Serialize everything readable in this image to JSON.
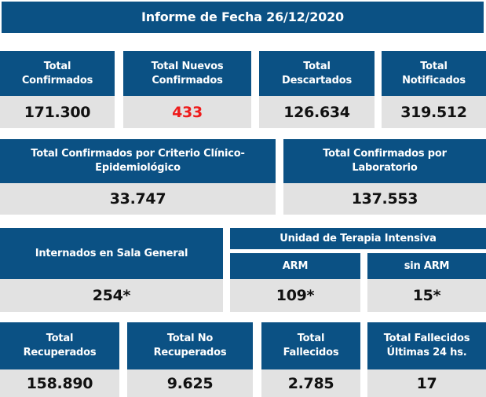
{
  "title": "Informe de Fecha 26/12/2020",
  "row1": [
    {
      "label": "Total Confirmados",
      "value": "171.300"
    },
    {
      "label": "Total Nuevos Confirmados",
      "value": "433"
    },
    {
      "label": "Total Descartados",
      "value": "126.634"
    },
    {
      "label": "Total Notificados",
      "value": "319.512"
    }
  ],
  "row2": [
    {
      "label": "Total Confirmados por Criterio Clínico-Epidemiológico",
      "value": "33.747"
    },
    {
      "label": "Total Confirmados por Laboratorio",
      "value": "137.553"
    }
  ],
  "row3": {
    "sala": {
      "label": "Internados en Sala General",
      "value": "254*"
    },
    "uti_label": "Unidad de Terapia Intensiva",
    "arm": {
      "label": "ARM",
      "value": "109*"
    },
    "sin_arm": {
      "label": "sin ARM",
      "value": "15*"
    }
  },
  "row4": [
    {
      "label": "Total Recuperados",
      "value": "158.890"
    },
    {
      "label": "Total No Recuperados",
      "value": "9.625"
    },
    {
      "label": "Total Fallecidos",
      "value": "2.785"
    },
    {
      "label": "Total Fallecidos Últimas 24 hs.",
      "value": "17"
    }
  ],
  "colors": {
    "header": "#0b5184",
    "value_bg": "#e2e2e2",
    "highlight": "#ee1c1c"
  }
}
